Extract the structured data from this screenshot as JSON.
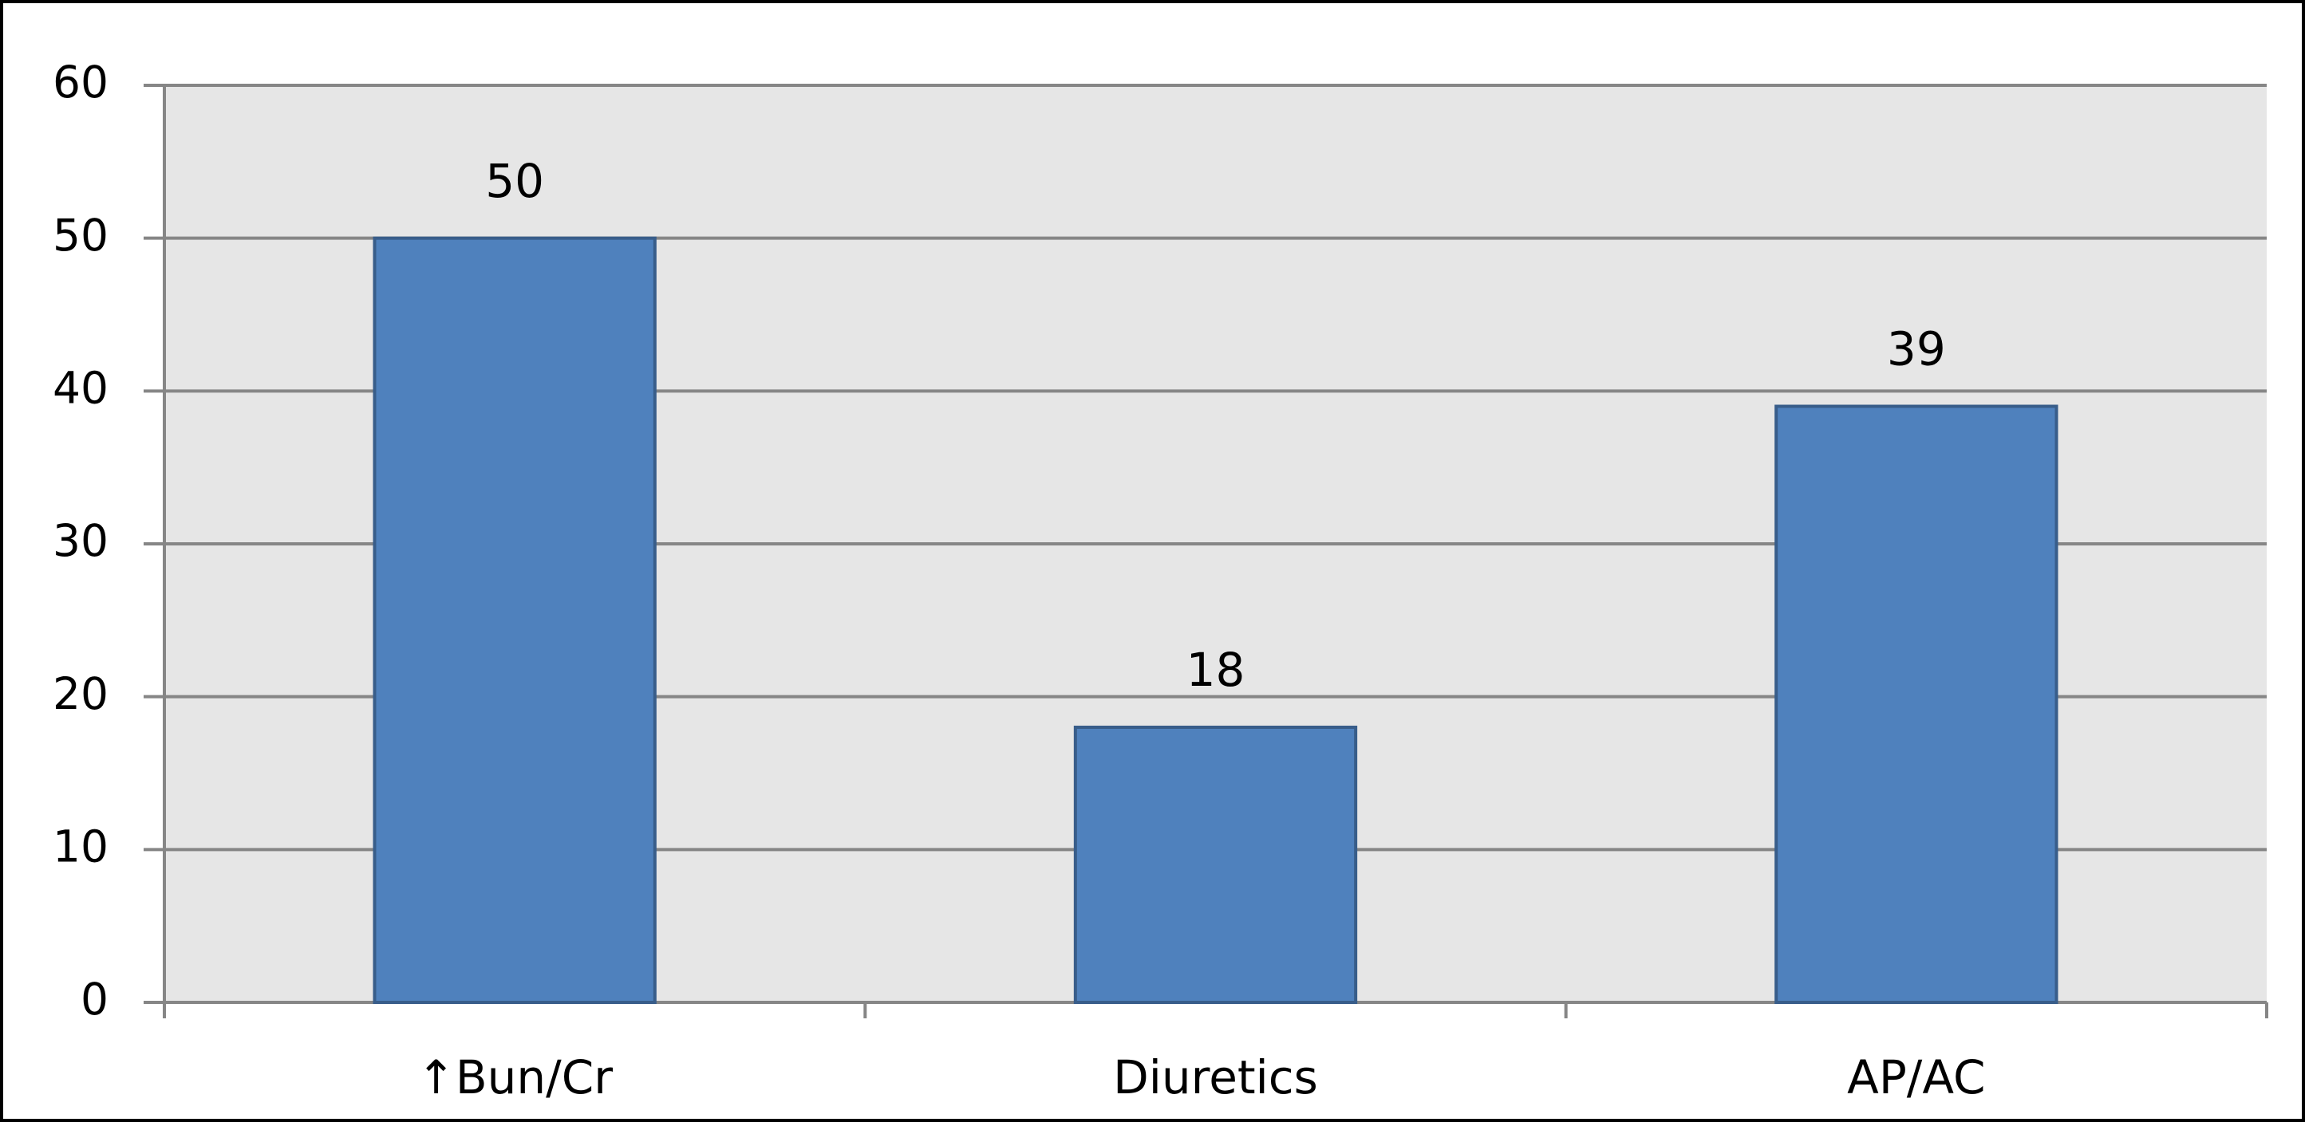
{
  "chart_data": {
    "type": "bar",
    "categories": [
      "↑Bun/Cr",
      "Diuretics",
      "AP/AC"
    ],
    "values": [
      50,
      18,
      39
    ],
    "color": "#4f81bd",
    "ylim": [
      0,
      60
    ],
    "yticks": [
      0,
      10,
      20,
      30,
      40,
      50,
      60
    ],
    "grid": true
  }
}
